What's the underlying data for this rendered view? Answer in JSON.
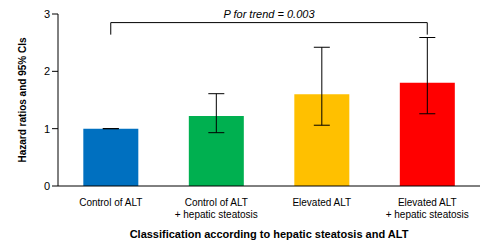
{
  "chart_data": {
    "type": "bar",
    "categories": [
      "Control of ALT",
      "Control of ALT\n+ hepatic steatosis",
      "Elevated ALT",
      "Elevated ALT\n+ hepatic steatosis"
    ],
    "values": [
      1,
      1.22,
      1.6,
      1.8
    ],
    "error_low": [
      1,
      0.93,
      1.06,
      1.26
    ],
    "error_high": [
      1,
      1.61,
      2.42,
      2.59
    ],
    "colors": [
      "#0070c0",
      "#00b050",
      "#ffc000",
      "#ff0000"
    ],
    "ylim": [
      0,
      3
    ],
    "yticks": [
      0,
      1,
      2,
      3
    ],
    "grid": false,
    "y_label": "Hazard ratios and 95% CIs",
    "x_label": "Classification according to hepatic steatosis and ALT",
    "annotation": "P for trend = 0.003"
  }
}
